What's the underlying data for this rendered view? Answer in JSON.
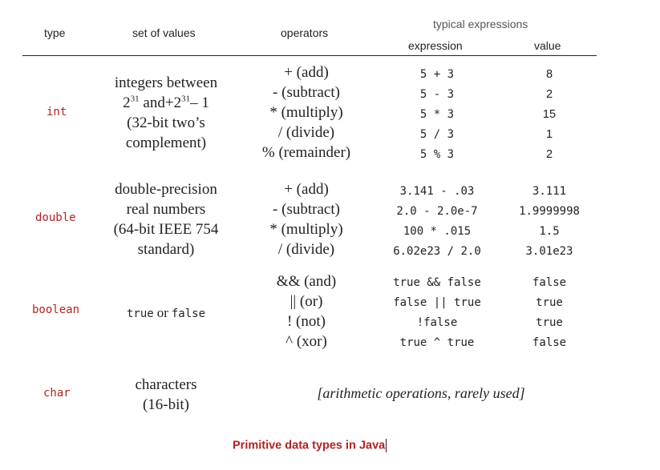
{
  "headers": {
    "type": "type",
    "set_of_values": "set of values",
    "operators": "operators",
    "typical_expressions": "typical expressions",
    "expression": "expression",
    "value": "value"
  },
  "rows": [
    {
      "type": "int",
      "values_lines": [
        {
          "text": "integers between"
        },
        {
          "base1": "2",
          "sup1": "31",
          "mid": " and+",
          "base2": "2",
          "sup2": "31",
          "tail": "– 1"
        },
        {
          "text": "(32-bit two’s"
        },
        {
          "text": "complement)"
        }
      ],
      "operators": [
        "+ (add)",
        "- (subtract)",
        "* (multiply)",
        "/ (divide)",
        "% (remainder)"
      ],
      "expressions": [
        "5 + 3",
        "5 - 3",
        "5 * 3",
        "5 / 3",
        "5 % 3"
      ],
      "results": [
        "8",
        "2",
        "15",
        "1",
        "2"
      ]
    },
    {
      "type": "double",
      "values_lines": [
        "double-precision",
        "real numbers",
        "(64-bit IEEE 754",
        "standard)"
      ],
      "operators": [
        "+ (add)",
        "- (subtract)",
        "* (multiply)",
        "/ (divide)"
      ],
      "expressions": [
        "3.141 - .03",
        "2.0 - 2.0e-7",
        "100 * .015",
        "6.02e23 / 2.0"
      ],
      "results": [
        "3.111",
        "1.9999998",
        "1.5",
        "3.01e23"
      ]
    },
    {
      "type": "boolean",
      "values": {
        "a": "true",
        "or": "or",
        "b": "false"
      },
      "operators": [
        "&& (and)",
        "|| (or)",
        "! (not)",
        "^ (xor)"
      ],
      "expressions": [
        "true && false",
        "false || true",
        "!false",
        "true ^ true"
      ],
      "results": [
        "false",
        "true",
        "true",
        "false"
      ]
    },
    {
      "type": "char",
      "values_lines": [
        "characters",
        "(16-bit)"
      ],
      "note": "[arithmetic operations, rarely used]"
    }
  ],
  "caption": "Primitive data types in Java"
}
